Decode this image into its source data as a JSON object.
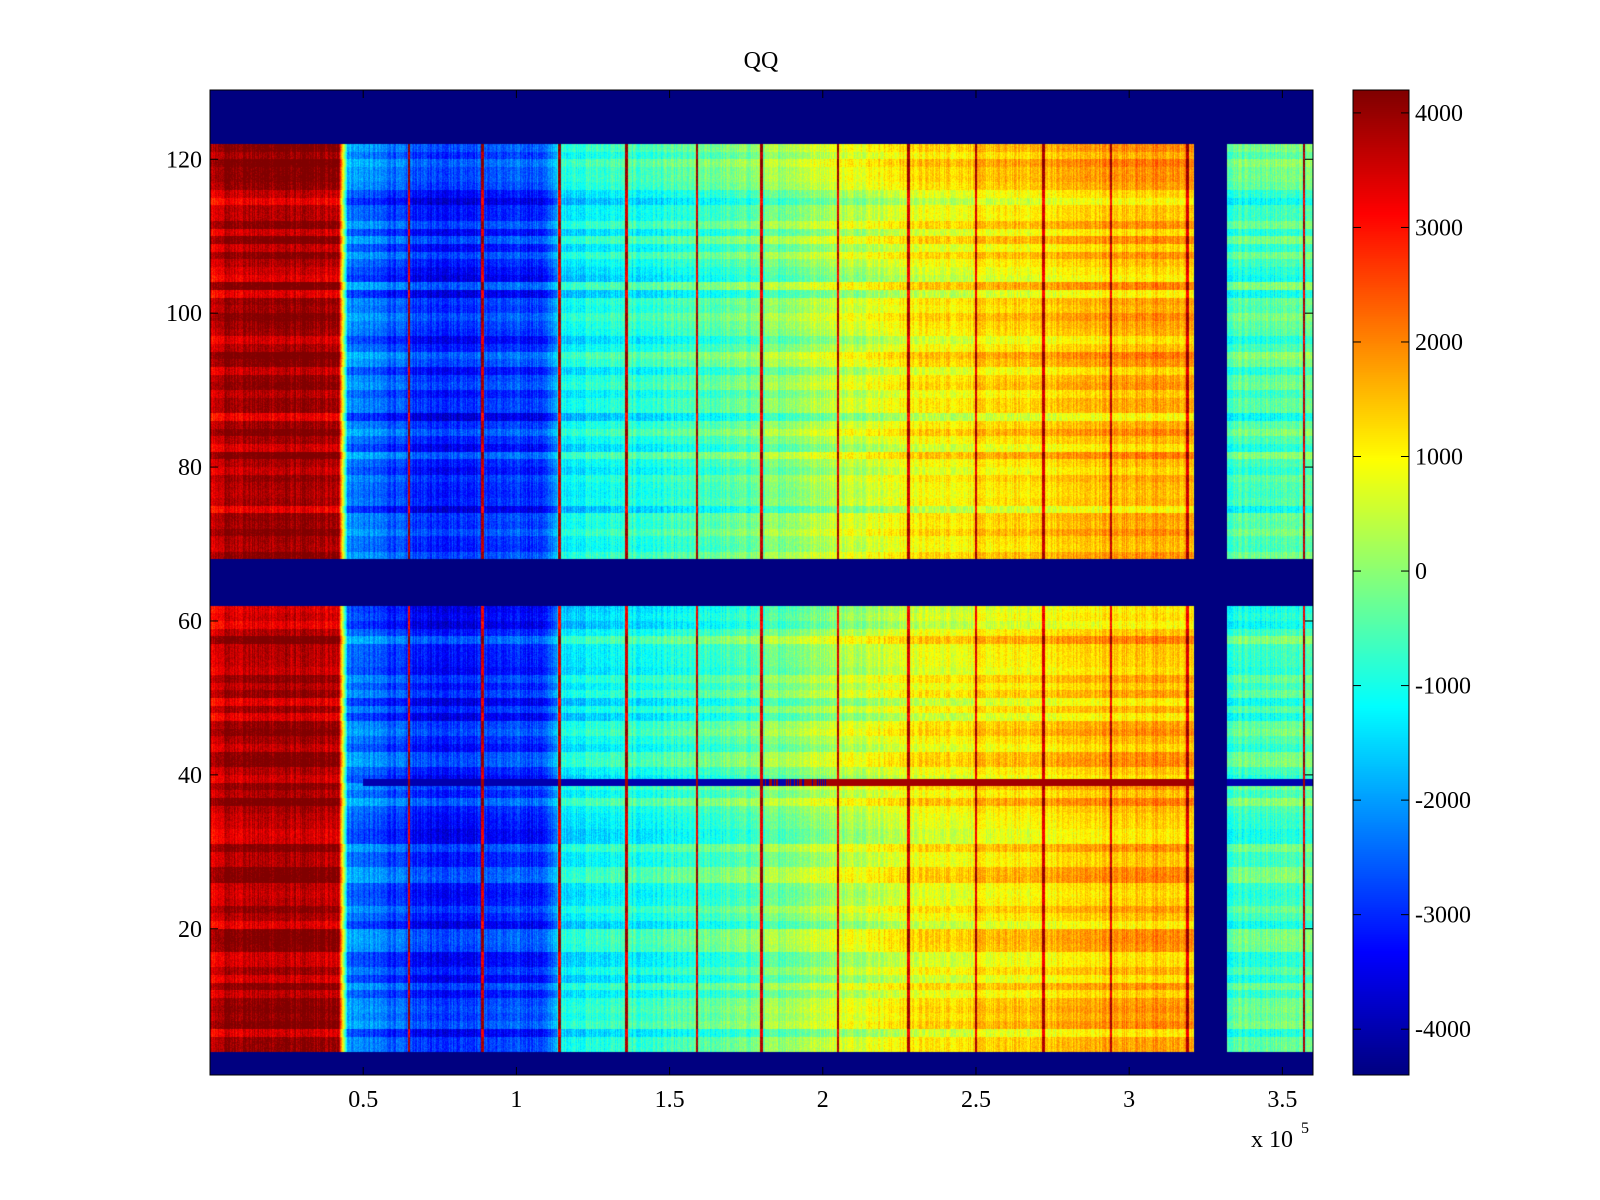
{
  "chart_data": {
    "type": "heatmap",
    "title": "QQ",
    "xlabel": "",
    "ylabel": "",
    "x_exponent_label": "x 10",
    "x_exponent_power": "5",
    "xlim": [
      0,
      3.6
    ],
    "ylim": [
      1,
      129
    ],
    "x_ticks": [
      0.5,
      1,
      1.5,
      2,
      2.5,
      3,
      3.5
    ],
    "x_tick_labels": [
      "0.5",
      "1",
      "1.5",
      "2",
      "2.5",
      "3",
      "3.5"
    ],
    "y_ticks": [
      20,
      40,
      60,
      80,
      100,
      120
    ],
    "y_tick_labels": [
      "20",
      "40",
      "60",
      "80",
      "100",
      "120"
    ],
    "colorbar": {
      "colormap": "jet",
      "clim": [
        -4400,
        4200
      ],
      "ticks": [
        4000,
        3000,
        2000,
        1000,
        0,
        -1000,
        -2000,
        -3000,
        -4000
      ],
      "tick_labels": [
        "4000",
        "3000",
        "2000",
        "1000",
        "0",
        "-1000",
        "-2000",
        "-3000",
        "-4000"
      ]
    },
    "empty_value": -4400,
    "empty_rows": [
      [
        1,
        4
      ],
      [
        62,
        68
      ],
      [
        122,
        129
      ]
    ],
    "empty_column_span": [
      3.21,
      3.32
    ],
    "column_profile": [
      {
        "x": 0.0,
        "value": 3300
      },
      {
        "x": 0.05,
        "value": 3800
      },
      {
        "x": 0.25,
        "value": 3900
      },
      {
        "x": 0.42,
        "value": 3700
      },
      {
        "x": 0.45,
        "value": -2200
      },
      {
        "x": 0.7,
        "value": -3100
      },
      {
        "x": 1.1,
        "value": -2900
      },
      {
        "x": 1.15,
        "value": -1200
      },
      {
        "x": 1.5,
        "value": -900
      },
      {
        "x": 1.8,
        "value": -300
      },
      {
        "x": 2.0,
        "value": 300
      },
      {
        "x": 2.3,
        "value": 900
      },
      {
        "x": 2.7,
        "value": 1200
      },
      {
        "x": 3.0,
        "value": 1600
      },
      {
        "x": 3.2,
        "value": 1500
      },
      {
        "x": 3.32,
        "value": -600
      },
      {
        "x": 3.6,
        "value": -500
      }
    ],
    "vertical_streaks_x": [
      0.65,
      0.89,
      1.14,
      1.36,
      1.59,
      1.8,
      2.05,
      2.28,
      2.5,
      2.72,
      2.94,
      3.19,
      3.57
    ],
    "horizontal_band_y": 39,
    "notes": "Heatmap of values across x (0 to 3.6 x 10^5) and row index (1 to 128)."
  }
}
